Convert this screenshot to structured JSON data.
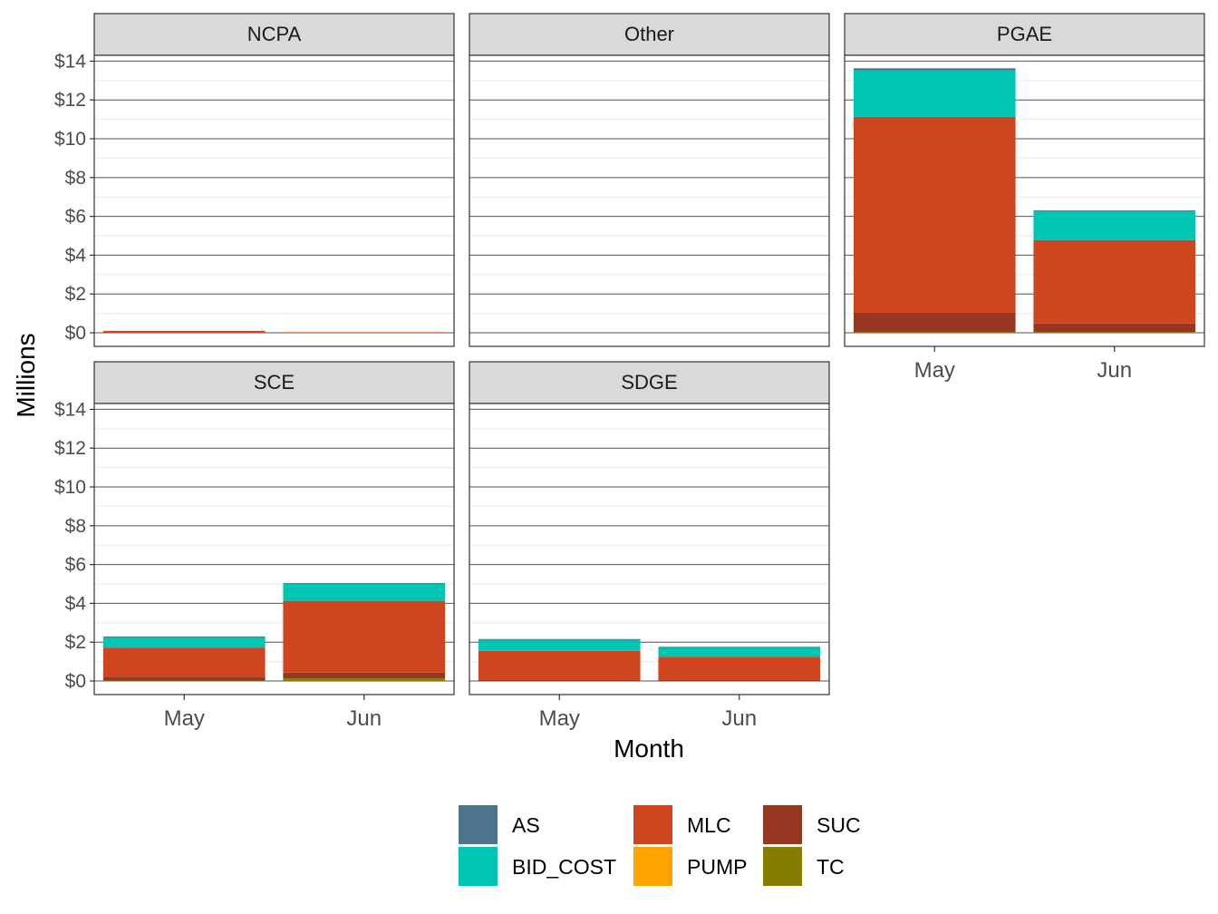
{
  "chart_data": {
    "type": "bar",
    "stacked": true,
    "facet_by": "utility",
    "facets": [
      "NCPA",
      "Other",
      "PGAE",
      "SCE",
      "SDGE"
    ],
    "categories": [
      "May",
      "Jun"
    ],
    "xlabel": "Month",
    "ylabel": "Millions",
    "ylim": [
      -0.7,
      14.3
    ],
    "yticks": [
      0,
      2,
      4,
      6,
      8,
      10,
      12,
      14
    ],
    "ytick_labels": [
      "$0",
      "$2",
      "$4",
      "$6",
      "$8",
      "$10",
      "$12",
      "$14"
    ],
    "grid": true,
    "legend_position": "bottom",
    "stack_order": [
      "TC",
      "PUMP",
      "SUC",
      "MLC",
      "BID_COST",
      "AS"
    ],
    "colors": {
      "AS": "#4e748b",
      "BID_COST": "#00c5b2",
      "MLC": "#cf4520",
      "PUMP": "#ffa400",
      "SUC": "#963821",
      "TC": "#867c00"
    },
    "series": [
      {
        "name": "AS",
        "values": {
          "NCPA": [
            0,
            0
          ],
          "Other": [
            0,
            0
          ],
          "PGAE": [
            0.1,
            0.03
          ],
          "SCE": [
            0.02,
            0.02
          ],
          "SDGE": [
            0.01,
            0.01
          ]
        }
      },
      {
        "name": "BID_COST",
        "values": {
          "NCPA": [
            0,
            0
          ],
          "Other": [
            0,
            0
          ],
          "PGAE": [
            2.4,
            1.5
          ],
          "SCE": [
            0.55,
            0.9
          ],
          "SDGE": [
            0.6,
            0.5
          ]
        }
      },
      {
        "name": "MLC",
        "values": {
          "NCPA": [
            0.1,
            0.03
          ],
          "Other": [
            0,
            0
          ],
          "PGAE": [
            10.1,
            4.3
          ],
          "SCE": [
            1.5,
            3.7
          ],
          "SDGE": [
            1.5,
            1.2
          ]
        }
      },
      {
        "name": "PUMP",
        "values": {
          "NCPA": [
            0,
            0
          ],
          "Other": [
            0,
            0
          ],
          "PGAE": [
            -0.05,
            0
          ],
          "SCE": [
            0,
            0
          ],
          "SDGE": [
            0,
            0
          ]
        }
      },
      {
        "name": "SUC",
        "values": {
          "NCPA": [
            0,
            0
          ],
          "Other": [
            0,
            0
          ],
          "PGAE": [
            1.0,
            0.45
          ],
          "SCE": [
            0.2,
            0.3
          ],
          "SDGE": [
            0.05,
            0.05
          ]
        }
      },
      {
        "name": "TC",
        "values": {
          "NCPA": [
            0,
            0
          ],
          "Other": [
            0,
            0
          ],
          "PGAE": [
            0.03,
            0.03
          ],
          "SCE": [
            0.02,
            0.13
          ],
          "SDGE": [
            0,
            0
          ]
        }
      }
    ]
  },
  "legend": {
    "items": [
      {
        "key": "AS",
        "label": "AS"
      },
      {
        "key": "BID_COST",
        "label": "BID_COST"
      },
      {
        "key": "MLC",
        "label": "MLC"
      },
      {
        "key": "PUMP",
        "label": "PUMP"
      },
      {
        "key": "SUC",
        "label": "SUC"
      },
      {
        "key": "TC",
        "label": "TC"
      }
    ]
  }
}
